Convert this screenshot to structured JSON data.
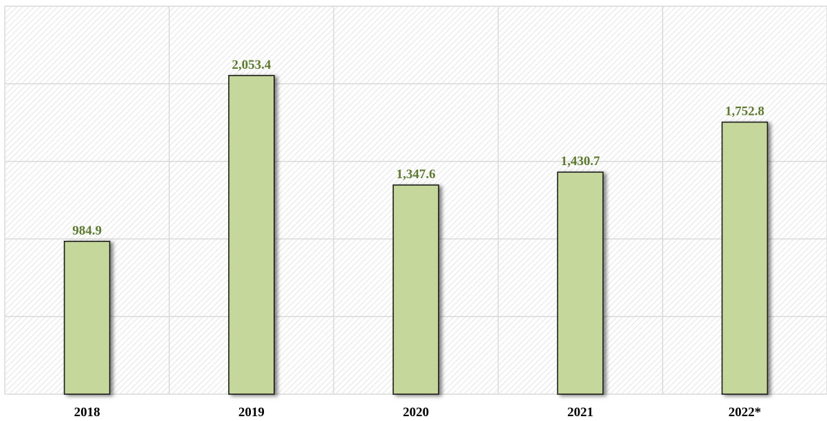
{
  "chart_data": {
    "type": "bar",
    "categories": [
      "2018",
      "2019",
      "2020",
      "2021",
      "2022*"
    ],
    "values": [
      984.9,
      2053.4,
      1347.6,
      1430.7,
      1752.8
    ],
    "value_labels": [
      "984.9",
      "2,053.4",
      "1,347.6",
      "1,430.7",
      "1,752.8"
    ],
    "ylim": [
      0,
      2500
    ],
    "grid": true,
    "legend": "none",
    "title": "",
    "xlabel": "",
    "ylabel": ""
  },
  "colors": {
    "bar_fill": "#c5d79b",
    "bar_stroke": "#1a1a1a",
    "value_label": "#5b7a2c",
    "gridline": "#d9d9d9",
    "hatch": "#d6d6d6"
  }
}
